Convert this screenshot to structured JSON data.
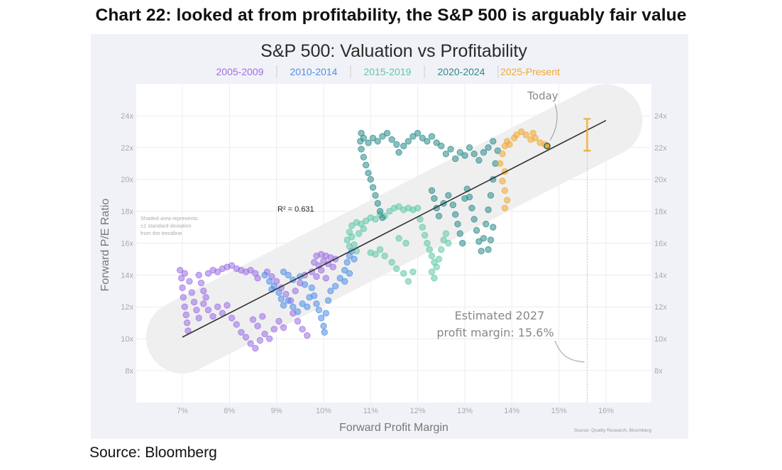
{
  "headline": "Chart 22: looked at from profitability, the S&P 500 is arguably fair value",
  "source_note": "Source: Bloomberg",
  "chart_data": {
    "type": "scatter",
    "title": "S&P 500: Valuation vs Profitability",
    "xlabel": "Forward Profit Margin",
    "ylabel": "Forward P/E Ratio",
    "xlim": [
      6.0,
      16.9
    ],
    "ylim": [
      6.2,
      26.2
    ],
    "x_ticks": [
      7,
      8,
      9,
      10,
      11,
      12,
      13,
      14,
      15,
      16
    ],
    "x_tick_labels": [
      "7%",
      "8%",
      "9%",
      "10%",
      "11%",
      "12%",
      "13%",
      "14%",
      "15%",
      "16%"
    ],
    "y_ticks": [
      8,
      10,
      12,
      14,
      16,
      18,
      20,
      22,
      24
    ],
    "y_tick_labels": [
      "8x",
      "10x",
      "12x",
      "14x",
      "16x",
      "18x",
      "20x",
      "22x",
      "24x"
    ],
    "grid": true,
    "legend_placement": "top-center",
    "source_text": "Source: Quality Research, Bloomberg",
    "r_squared_label": "R² = 0.631",
    "shaded_note": [
      "Shaded area represents",
      "±1 standard deviation",
      "from the trendline"
    ],
    "trendline": {
      "x": [
        7.0,
        16.0
      ],
      "y": [
        10.1,
        23.7
      ],
      "color": "#333333"
    },
    "std_band_width_pe": 2.4,
    "annotations": {
      "today": {
        "label": "Today",
        "x": 14.75,
        "y": 22.1
      },
      "estimate": {
        "label_line1": "Estimated 2027",
        "label_line2": "profit margin: 15.6%",
        "x": 15.6,
        "range_low": 21.8,
        "range_high": 23.8
      }
    },
    "series": [
      {
        "name": "2005-2009",
        "color": "#9b6ee6",
        "points": [
          [
            6.95,
            14.3
          ],
          [
            6.98,
            13.8
          ],
          [
            7.0,
            13.2
          ],
          [
            7.02,
            12.6
          ],
          [
            7.05,
            12.0
          ],
          [
            7.08,
            11.5
          ],
          [
            7.1,
            11.0
          ],
          [
            7.12,
            10.5
          ],
          [
            7.05,
            14.1
          ],
          [
            7.15,
            13.6
          ],
          [
            7.2,
            12.9
          ],
          [
            7.25,
            12.3
          ],
          [
            7.3,
            11.8
          ],
          [
            7.35,
            11.3
          ],
          [
            7.45,
            12.2
          ],
          [
            7.55,
            11.8
          ],
          [
            7.65,
            11.4
          ],
          [
            7.75,
            12.0
          ],
          [
            7.85,
            11.6
          ],
          [
            7.95,
            12.1
          ],
          [
            7.35,
            14.0
          ],
          [
            7.4,
            13.5
          ],
          [
            7.45,
            13.0
          ],
          [
            7.5,
            12.6
          ],
          [
            7.55,
            14.1
          ],
          [
            7.65,
            14.3
          ],
          [
            7.75,
            14.2
          ],
          [
            7.85,
            14.4
          ],
          [
            7.95,
            14.5
          ],
          [
            8.05,
            14.6
          ],
          [
            8.15,
            14.4
          ],
          [
            8.25,
            14.3
          ],
          [
            8.35,
            14.2
          ],
          [
            8.45,
            14.3
          ],
          [
            8.55,
            14.1
          ],
          [
            8.6,
            13.8
          ],
          [
            8.05,
            11.3
          ],
          [
            8.15,
            10.9
          ],
          [
            8.25,
            10.4
          ],
          [
            8.35,
            10.1
          ],
          [
            8.45,
            9.7
          ],
          [
            8.55,
            9.4
          ],
          [
            8.65,
            9.9
          ],
          [
            8.75,
            10.3
          ],
          [
            8.85,
            10.0
          ],
          [
            8.95,
            10.6
          ],
          [
            9.05,
            11.1
          ],
          [
            9.15,
            10.7
          ],
          [
            8.5,
            11.2
          ],
          [
            8.6,
            10.8
          ],
          [
            8.7,
            11.4
          ],
          [
            8.8,
            14.2
          ],
          [
            8.9,
            13.9
          ],
          [
            9.0,
            13.6
          ],
          [
            9.1,
            13.2
          ],
          [
            9.2,
            12.8
          ],
          [
            9.3,
            12.4
          ],
          [
            9.4,
            13.0
          ],
          [
            9.5,
            13.5
          ],
          [
            9.6,
            14.0
          ],
          [
            9.35,
            11.6
          ],
          [
            9.45,
            11.1
          ],
          [
            9.55,
            10.6
          ],
          [
            9.65,
            10.2
          ],
          [
            9.75,
            14.2
          ],
          [
            9.8,
            14.8
          ],
          [
            9.85,
            15.2
          ],
          [
            9.9,
            14.6
          ],
          [
            9.95,
            15.3
          ],
          [
            10.0,
            14.9
          ],
          [
            10.05,
            15.2
          ],
          [
            10.1,
            14.7
          ],
          [
            10.15,
            15.1
          ],
          [
            10.2,
            14.5
          ],
          [
            10.25,
            15.0
          ],
          [
            9.85,
            13.9
          ],
          [
            9.95,
            14.3
          ],
          [
            10.05,
            13.8
          ]
        ]
      },
      {
        "name": "2010-2014",
        "color": "#4f8ee8",
        "points": [
          [
            8.75,
            14.0
          ],
          [
            8.85,
            13.6
          ],
          [
            8.9,
            13.1
          ],
          [
            8.95,
            13.3
          ],
          [
            9.05,
            12.9
          ],
          [
            9.1,
            12.5
          ],
          [
            9.15,
            12.1
          ],
          [
            9.25,
            12.4
          ],
          [
            9.35,
            12.0
          ],
          [
            9.45,
            11.7
          ],
          [
            9.55,
            12.2
          ],
          [
            9.65,
            12.0
          ],
          [
            9.7,
            12.6
          ],
          [
            9.15,
            14.2
          ],
          [
            9.25,
            14.0
          ],
          [
            9.35,
            13.7
          ],
          [
            9.5,
            13.9
          ],
          [
            9.6,
            13.4
          ],
          [
            9.75,
            13.2
          ],
          [
            9.8,
            12.7
          ],
          [
            9.85,
            12.2
          ],
          [
            9.9,
            11.8
          ],
          [
            9.95,
            11.3
          ],
          [
            10.0,
            10.8
          ],
          [
            10.02,
            10.4
          ],
          [
            10.05,
            11.6
          ],
          [
            10.1,
            12.4
          ],
          [
            10.15,
            13.0
          ],
          [
            10.25,
            13.3
          ],
          [
            10.35,
            13.8
          ],
          [
            10.45,
            14.3
          ],
          [
            10.5,
            14.8
          ],
          [
            10.55,
            15.2
          ],
          [
            10.6,
            15.5
          ],
          [
            10.45,
            13.6
          ],
          [
            10.55,
            14.1
          ],
          [
            10.65,
            15.0
          ]
        ]
      },
      {
        "name": "2015-2019",
        "color": "#5cc8a8",
        "points": [
          [
            10.5,
            16.2
          ],
          [
            10.55,
            16.7
          ],
          [
            10.6,
            17.1
          ],
          [
            10.7,
            17.3
          ],
          [
            10.8,
            17.2
          ],
          [
            10.9,
            17.4
          ],
          [
            11.0,
            17.6
          ],
          [
            11.1,
            17.5
          ],
          [
            11.2,
            17.8
          ],
          [
            11.3,
            17.7
          ],
          [
            11.4,
            18.0
          ],
          [
            11.5,
            18.2
          ],
          [
            11.6,
            18.3
          ],
          [
            11.7,
            18.1
          ],
          [
            11.8,
            18.2
          ],
          [
            11.9,
            18.1
          ],
          [
            12.0,
            18.2
          ],
          [
            10.6,
            16.4
          ],
          [
            10.65,
            15.9
          ],
          [
            10.7,
            15.5
          ],
          [
            10.55,
            15.8
          ],
          [
            10.75,
            16.6
          ],
          [
            10.85,
            16.9
          ],
          [
            11.0,
            15.4
          ],
          [
            11.1,
            15.3
          ],
          [
            11.2,
            15.6
          ],
          [
            11.3,
            15.2
          ],
          [
            11.45,
            14.8
          ],
          [
            11.55,
            14.4
          ],
          [
            11.7,
            14.1
          ],
          [
            11.8,
            13.6
          ],
          [
            11.9,
            14.2
          ],
          [
            11.6,
            16.3
          ],
          [
            11.75,
            16.0
          ],
          [
            12.05,
            17.5
          ],
          [
            12.1,
            17.0
          ],
          [
            12.15,
            16.5
          ],
          [
            12.2,
            16.0
          ],
          [
            12.25,
            15.6
          ],
          [
            12.3,
            15.2
          ],
          [
            12.35,
            14.8
          ],
          [
            12.4,
            14.5
          ],
          [
            12.45,
            15.0
          ],
          [
            12.5,
            15.6
          ],
          [
            12.55,
            16.2
          ],
          [
            12.6,
            16.6
          ],
          [
            12.65,
            16.0
          ],
          [
            12.3,
            14.2
          ],
          [
            12.35,
            13.8
          ]
        ]
      },
      {
        "name": "2020-2024",
        "color": "#2a8a8a",
        "points": [
          [
            10.8,
            22.9
          ],
          [
            10.78,
            22.4
          ],
          [
            10.8,
            21.9
          ],
          [
            10.85,
            21.4
          ],
          [
            10.9,
            20.9
          ],
          [
            10.95,
            20.4
          ],
          [
            11.0,
            20.0
          ],
          [
            11.05,
            19.5
          ],
          [
            11.1,
            19.0
          ],
          [
            11.15,
            18.5
          ],
          [
            11.2,
            18.0
          ],
          [
            11.25,
            17.6
          ],
          [
            10.85,
            22.6
          ],
          [
            10.95,
            22.3
          ],
          [
            11.05,
            22.6
          ],
          [
            11.15,
            22.4
          ],
          [
            11.25,
            22.7
          ],
          [
            11.35,
            22.9
          ],
          [
            11.45,
            22.5
          ],
          [
            11.55,
            22.2
          ],
          [
            11.6,
            21.7
          ],
          [
            11.7,
            22.1
          ],
          [
            11.8,
            22.4
          ],
          [
            11.9,
            22.7
          ],
          [
            12.0,
            22.9
          ],
          [
            12.1,
            22.6
          ],
          [
            12.2,
            22.4
          ],
          [
            12.3,
            22.7
          ],
          [
            12.4,
            22.3
          ],
          [
            12.5,
            22.1
          ],
          [
            12.6,
            21.6
          ],
          [
            12.7,
            21.9
          ],
          [
            12.8,
            21.3
          ],
          [
            12.9,
            21.7
          ],
          [
            13.0,
            21.5
          ],
          [
            13.1,
            22.0
          ],
          [
            13.2,
            21.6
          ],
          [
            13.3,
            21.2
          ],
          [
            13.4,
            21.7
          ],
          [
            13.5,
            22.0
          ],
          [
            13.6,
            22.4
          ],
          [
            12.3,
            19.3
          ],
          [
            12.35,
            18.8
          ],
          [
            12.4,
            18.2
          ],
          [
            12.45,
            17.7
          ],
          [
            12.55,
            18.5
          ],
          [
            12.65,
            19.0
          ],
          [
            12.75,
            18.4
          ],
          [
            12.8,
            17.8
          ],
          [
            12.85,
            17.2
          ],
          [
            12.9,
            16.6
          ],
          [
            12.95,
            16.0
          ],
          [
            13.0,
            18.8
          ],
          [
            13.05,
            19.4
          ],
          [
            13.1,
            18.9
          ],
          [
            13.15,
            18.2
          ],
          [
            13.2,
            17.5
          ],
          [
            13.25,
            16.8
          ],
          [
            13.3,
            16.1
          ],
          [
            13.35,
            15.5
          ],
          [
            13.4,
            16.3
          ],
          [
            13.45,
            17.2
          ],
          [
            13.5,
            18.1
          ],
          [
            13.55,
            19.0
          ],
          [
            13.6,
            20.0
          ],
          [
            13.65,
            21.0
          ],
          [
            13.7,
            21.8
          ],
          [
            13.6,
            17.0
          ],
          [
            13.55,
            16.2
          ],
          [
            13.5,
            15.6
          ]
        ]
      },
      {
        "name": "2025-Present",
        "color": "#f0a830",
        "points": [
          [
            13.75,
            21.0
          ],
          [
            13.8,
            21.6
          ],
          [
            13.85,
            22.1
          ],
          [
            13.9,
            22.4
          ],
          [
            13.95,
            22.2
          ],
          [
            13.85,
            20.5
          ],
          [
            13.8,
            19.9
          ],
          [
            13.85,
            19.3
          ],
          [
            13.9,
            18.7
          ],
          [
            13.85,
            18.2
          ],
          [
            14.05,
            22.6
          ],
          [
            14.1,
            22.8
          ],
          [
            14.2,
            23.0
          ],
          [
            14.3,
            22.8
          ],
          [
            14.4,
            22.5
          ],
          [
            14.45,
            22.9
          ],
          [
            14.5,
            22.6
          ],
          [
            14.6,
            22.3
          ],
          [
            14.7,
            22.2
          ]
        ]
      }
    ]
  }
}
